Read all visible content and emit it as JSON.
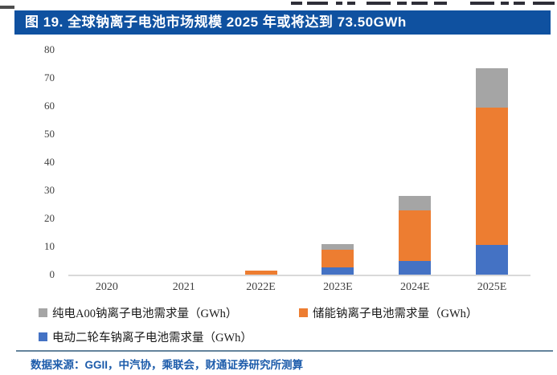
{
  "title_bar": {
    "text": "图 19. 全球钠离子电池市场规模 2025 年或将达到 73.50GWh",
    "bg_color": "#0F51A0",
    "text_color": "#FFFFFF"
  },
  "chart_data": {
    "type": "bar",
    "stacked": true,
    "title": "图 19. 全球钠离子电池市场规模 2025 年或将达到 73.50GWh",
    "categories": [
      "2020",
      "2021",
      "2022E",
      "2023E",
      "2024E",
      "2025E"
    ],
    "series": [
      {
        "name": "电动二轮车钠离子电池需求量（GWh）",
        "color": "#4472C4",
        "values": [
          0,
          0,
          0,
          2.5,
          5,
          10.5
        ]
      },
      {
        "name": "储能钠离子电池需求量（GWh）",
        "color": "#ED7D31",
        "values": [
          0,
          0,
          1.5,
          6.5,
          18,
          49
        ]
      },
      {
        "name": "纯电A00钠离子电池需求量（GWh）",
        "color": "#A5A5A5",
        "values": [
          0,
          0,
          0,
          2,
          5,
          14
        ]
      }
    ],
    "totals": [
      0,
      0,
      1.5,
      11,
      28,
      73.5
    ],
    "xlabel": "",
    "ylabel": "",
    "ylim": [
      0,
      80
    ],
    "yticks": [
      0,
      10,
      20,
      30,
      40,
      50,
      60,
      70,
      80
    ],
    "grid": false,
    "legend_position": "bottom",
    "baseline_color": "#D9D9D9"
  },
  "legend": {
    "items": [
      {
        "label": "纯电A00钠离子电池需求量（GWh）",
        "color": "#A5A5A5"
      },
      {
        "label": "储能钠离子电池需求量（GWh）",
        "color": "#ED7D31"
      },
      {
        "label": "电动二轮车钠离子电池需求量（GWh）",
        "color": "#4472C4"
      }
    ]
  },
  "footer": {
    "source_text": "数据来源：GGII，中汽协，乘联会，财通证券研究所测算"
  }
}
